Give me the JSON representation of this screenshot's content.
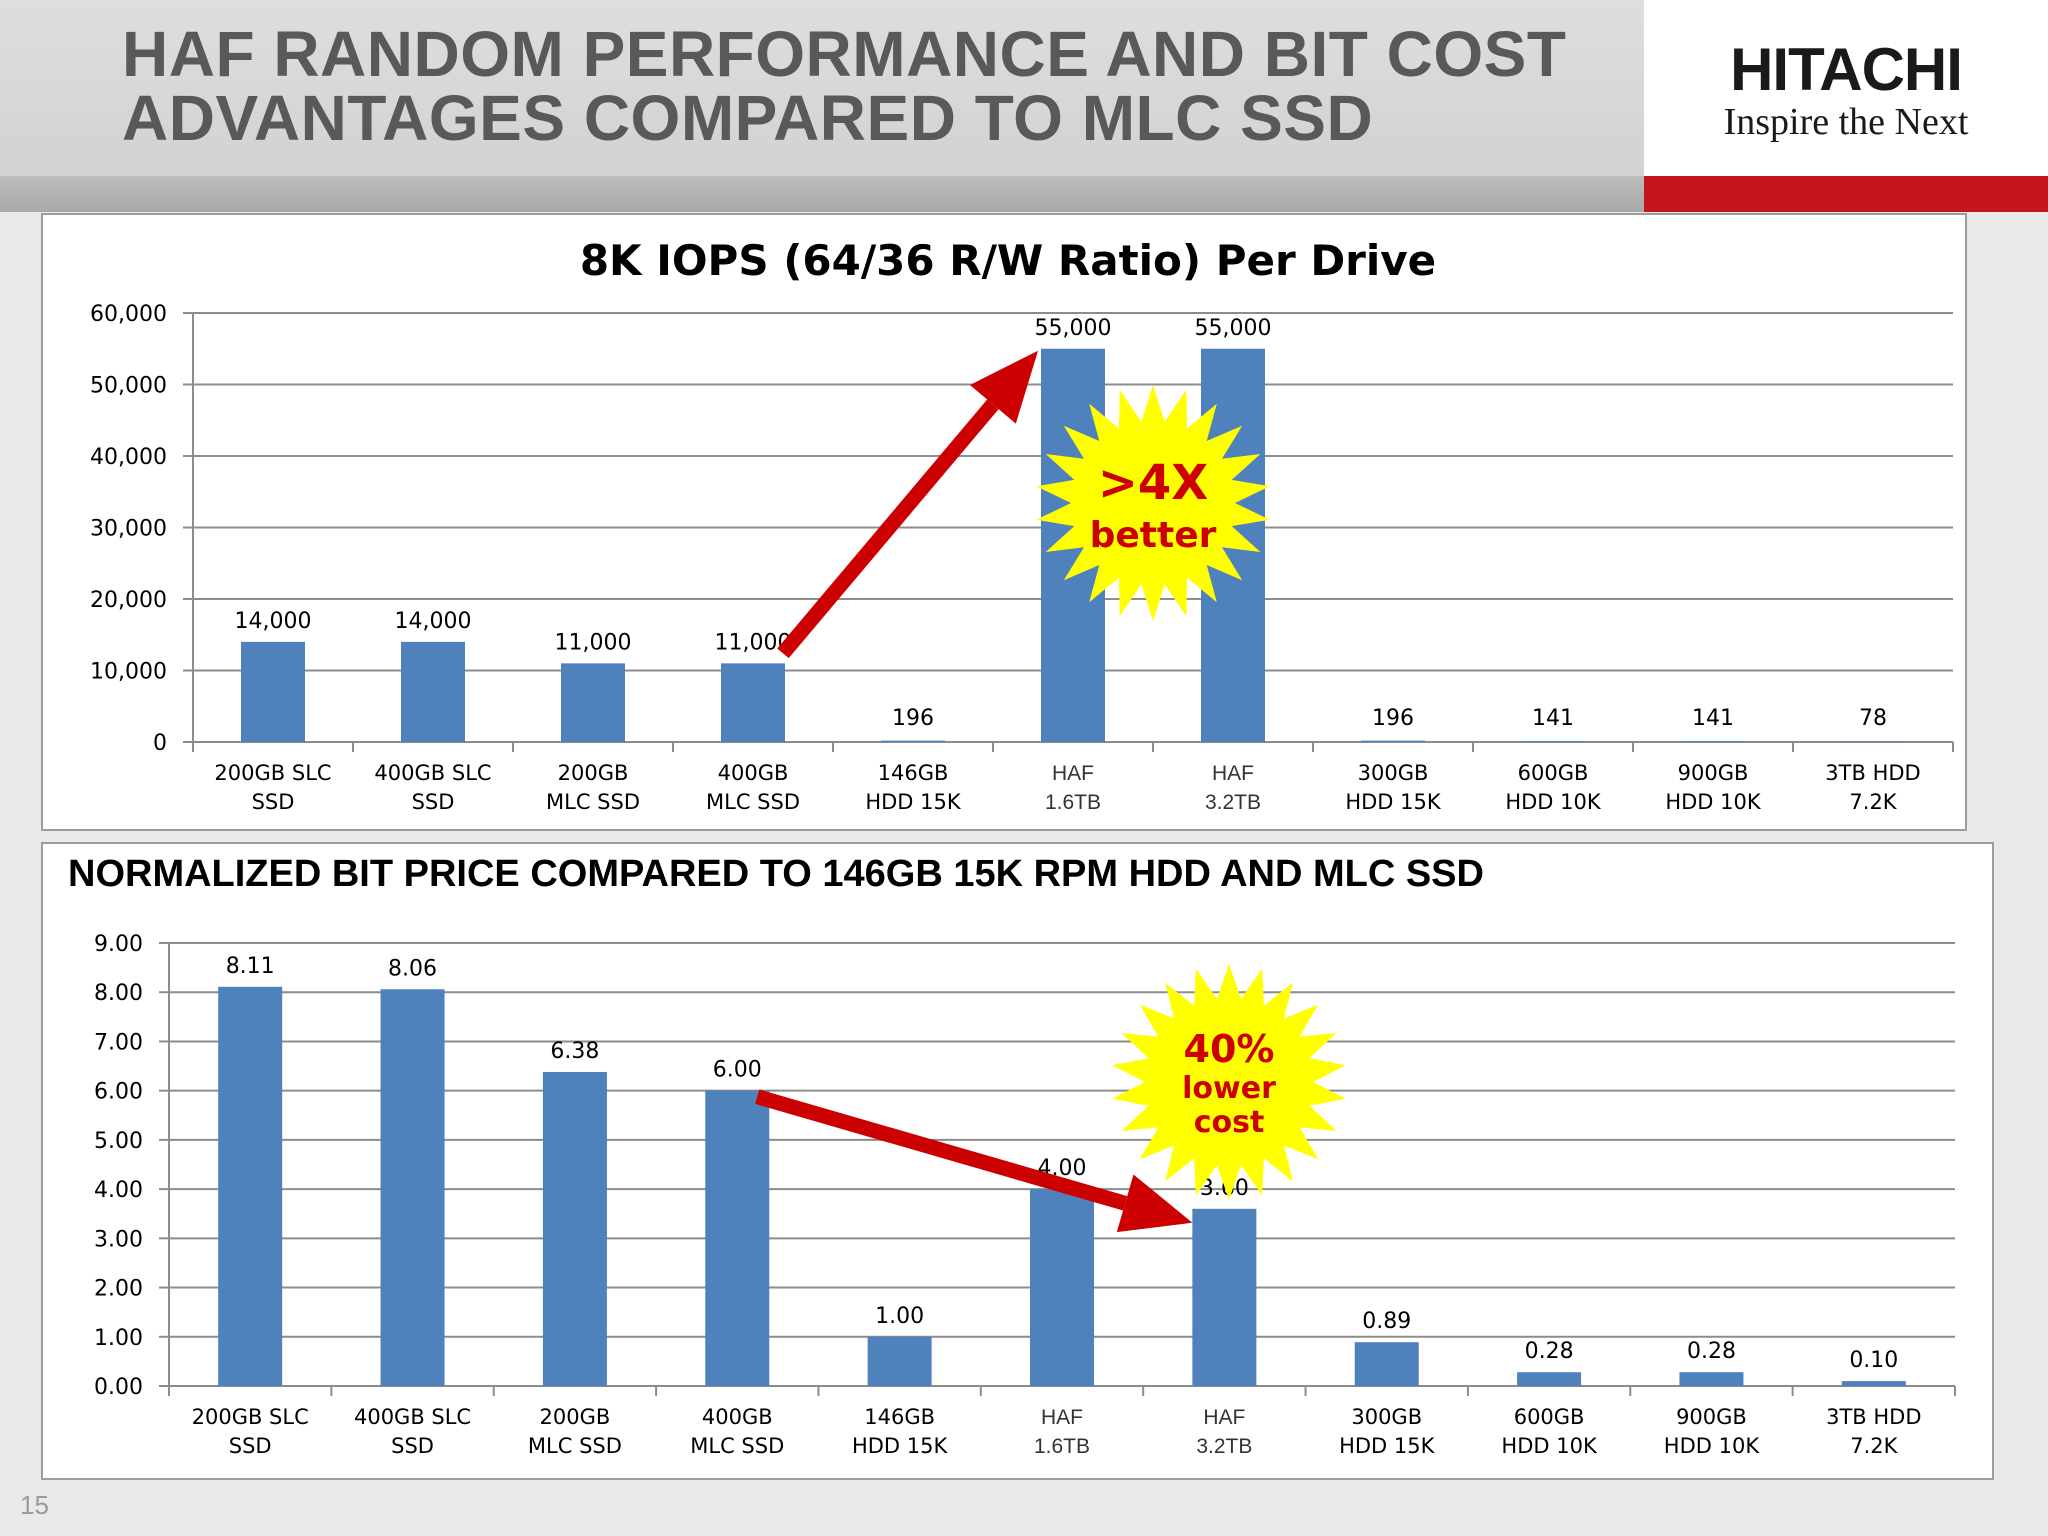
{
  "slide": {
    "title_line1": "HAF RANDOM PERFORMANCE AND BIT COST",
    "title_line2": "ADVANTAGES COMPARED TO MLC SSD",
    "brand_name": "HITACHI",
    "brand_tagline": "Inspire the Next",
    "page_number": "15",
    "colors": {
      "header_band": "#d6d6d6",
      "accent_red": "#c4161c",
      "bar": "#4f81bd",
      "arrow": "#cc0000",
      "starburst": "#ffff00"
    }
  },
  "chart_data": [
    {
      "type": "bar",
      "title": "8K IOPS (64/36 R/W Ratio) Per Drive",
      "categories": [
        [
          "200GB SLC",
          "SSD"
        ],
        [
          "400GB SLC",
          "SSD"
        ],
        [
          "200GB",
          "MLC SSD"
        ],
        [
          "400GB",
          "MLC SSD"
        ],
        [
          "146GB",
          "HDD 15K"
        ],
        [
          "HAF",
          "1.6TB"
        ],
        [
          "HAF",
          "3.2TB"
        ],
        [
          "300GB",
          "HDD 15K"
        ],
        [
          "600GB",
          "HDD 10K"
        ],
        [
          "900GB",
          "HDD 10K"
        ],
        [
          "3TB HDD",
          "7.2K"
        ]
      ],
      "values": [
        14000,
        14000,
        11000,
        11000,
        196,
        55000,
        55000,
        196,
        141,
        141,
        78
      ],
      "value_labels": [
        "14,000",
        "14,000",
        "11,000",
        "11,000",
        "196",
        "55,000",
        "55,000",
        "196",
        "141",
        "141",
        "78"
      ],
      "ylim": [
        0,
        60000
      ],
      "yticks": [
        0,
        10000,
        20000,
        30000,
        40000,
        50000,
        60000
      ],
      "ytick_labels": [
        "0",
        "10,000",
        "20,000",
        "30,000",
        "40,000",
        "50,000",
        "60,000"
      ],
      "grid": true,
      "annotation": {
        "line1": ">4X",
        "line2": "better",
        "arrow_from_category": 3,
        "arrow_to_category": 5
      }
    },
    {
      "type": "bar",
      "title": "NORMALIZED BIT PRICE COMPARED TO 146GB 15K RPM HDD AND MLC SSD",
      "categories": [
        [
          "200GB SLC",
          "SSD"
        ],
        [
          "400GB SLC",
          "SSD"
        ],
        [
          "200GB",
          "MLC SSD"
        ],
        [
          "400GB",
          "MLC SSD"
        ],
        [
          "146GB",
          "HDD 15K"
        ],
        [
          "HAF",
          "1.6TB"
        ],
        [
          "HAF",
          "3.2TB"
        ],
        [
          "300GB",
          "HDD 15K"
        ],
        [
          "600GB",
          "HDD 10K"
        ],
        [
          "900GB",
          "HDD 10K"
        ],
        [
          "3TB HDD",
          "7.2K"
        ]
      ],
      "values": [
        8.11,
        8.06,
        6.38,
        6.0,
        1.0,
        4.0,
        3.6,
        0.89,
        0.28,
        0.28,
        0.1
      ],
      "value_labels": [
        "8.11",
        "8.06",
        "6.38",
        "6.00",
        "1.00",
        "4.00",
        "3.60",
        "0.89",
        "0.28",
        "0.28",
        "0.10"
      ],
      "ylim": [
        0,
        9
      ],
      "yticks": [
        0,
        1,
        2,
        3,
        4,
        5,
        6,
        7,
        8,
        9
      ],
      "ytick_labels": [
        "0.00",
        "1.00",
        "2.00",
        "3.00",
        "4.00",
        "5.00",
        "6.00",
        "7.00",
        "8.00",
        "9.00"
      ],
      "grid": true,
      "annotation": {
        "line1": "40%",
        "line2": "lower",
        "line3": "cost",
        "arrow_from_category": 3,
        "arrow_to_category": 6
      }
    }
  ]
}
